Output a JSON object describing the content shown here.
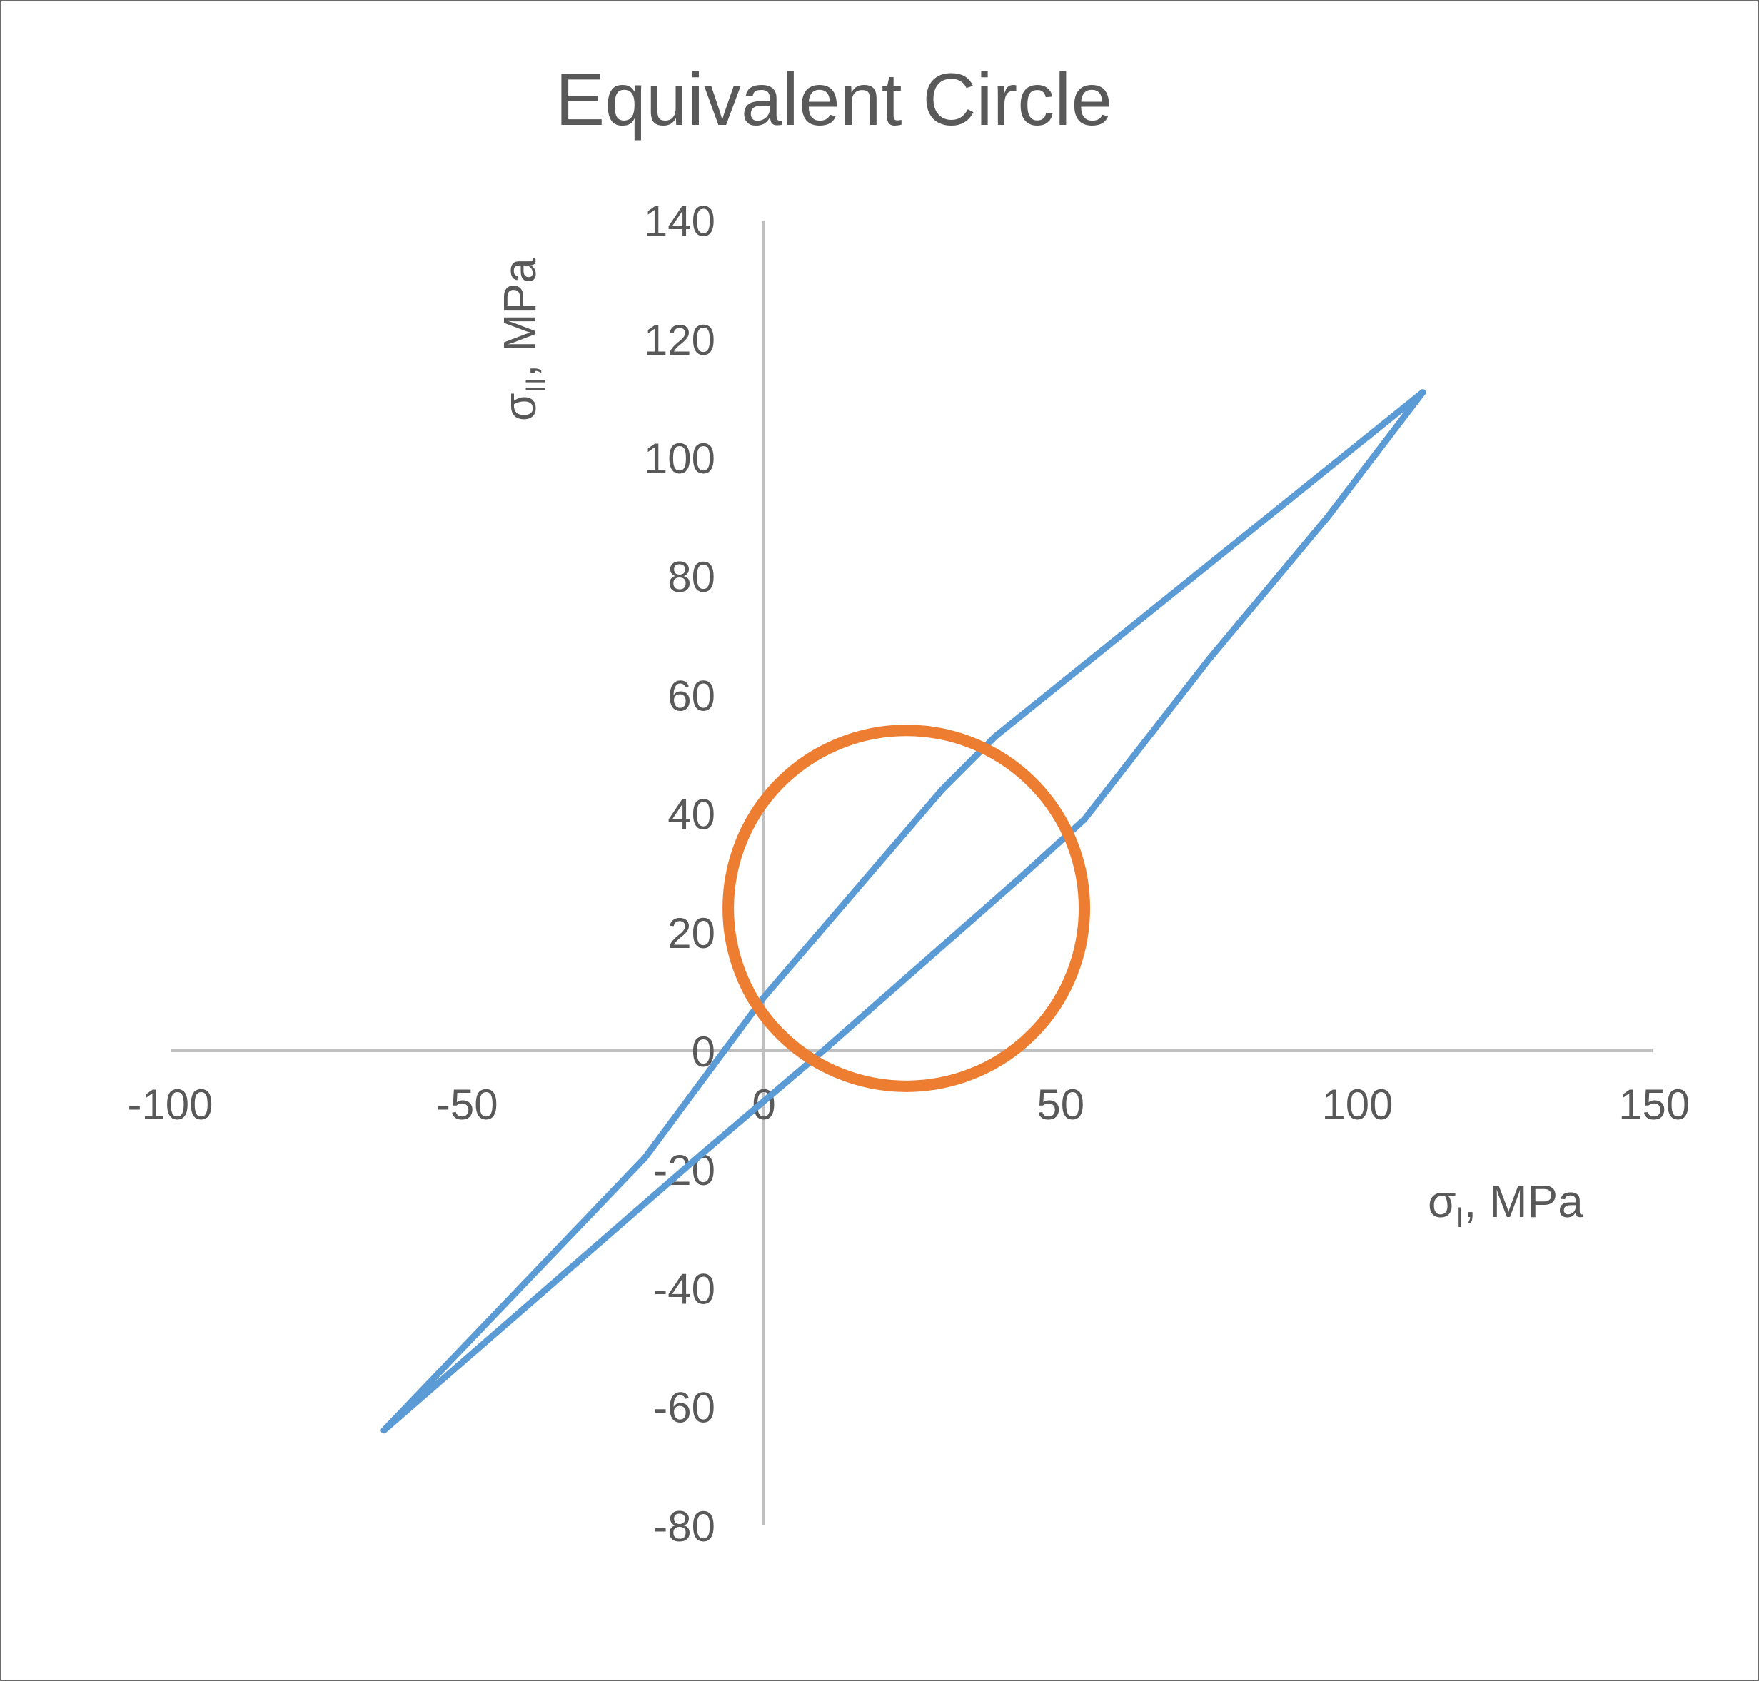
{
  "chart_data": {
    "type": "scatter",
    "title": "Equivalent Circle",
    "xlabel": {
      "sym": "σ",
      "sub": "I",
      "unit": ", MPa"
    },
    "ylabel": {
      "sym": "σ",
      "sub": "II",
      "unit": ", MPa"
    },
    "xlim": [
      -100,
      150
    ],
    "ylim": [
      -80,
      140
    ],
    "xticks": [
      -100,
      -50,
      0,
      50,
      100,
      150
    ],
    "yticks": [
      -80,
      -60,
      -40,
      -20,
      0,
      20,
      40,
      60,
      80,
      100,
      120,
      140
    ],
    "grid": false,
    "legend": "none",
    "series": [
      {
        "color": "#5b9bd5",
        "points": [
          [
            -64,
            -64
          ],
          [
            -20,
            -18
          ],
          [
            0,
            9
          ],
          [
            30,
            44
          ],
          [
            39,
            53
          ],
          [
            111,
            111
          ],
          [
            95,
            90
          ],
          [
            75,
            66
          ],
          [
            54,
            39
          ],
          [
            43,
            29
          ],
          [
            10,
            0
          ],
          [
            -10,
            -17
          ],
          [
            -64,
            -64
          ]
        ]
      },
      {
        "color": "#ed7d31",
        "circle": {
          "cx": 24,
          "cy": 24,
          "r": 30
        }
      }
    ]
  }
}
